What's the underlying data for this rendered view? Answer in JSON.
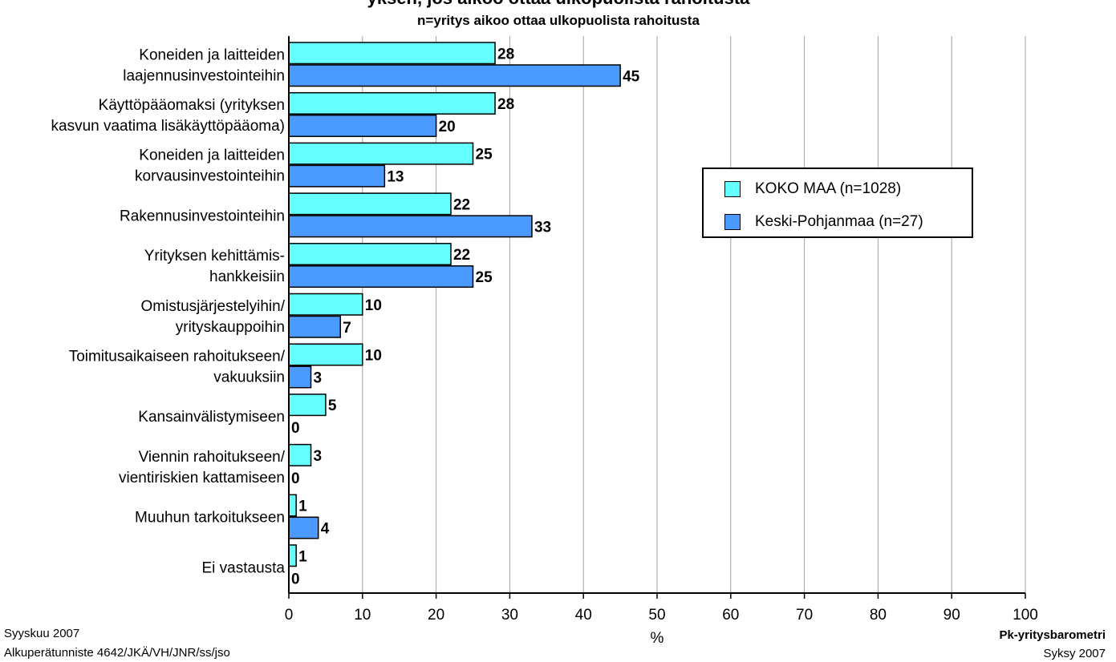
{
  "chart_data": {
    "type": "bar",
    "orientation": "horizontal",
    "title": "yksen, jos aikoo ottaa ulkopuolista rahoitusta",
    "subtitle": "n=yritys aikoo ottaa ulkopuolista rahoitusta",
    "xlabel": "%",
    "ylabel": "",
    "xlim": [
      0,
      100
    ],
    "xticks": [
      "0",
      "10",
      "20",
      "30",
      "40",
      "50",
      "60",
      "70",
      "80",
      "90",
      "100"
    ],
    "grid": "vertical",
    "legend_position": "right",
    "categories": [
      [
        "Koneiden ja laitteiden",
        "laajennusinvestointeihin"
      ],
      [
        "Käyttöpääomaksi (yrityksen",
        "kasvun vaatima lisäkäyttöpääoma)"
      ],
      [
        "Koneiden ja laitteiden",
        "korvausinvestointeihin"
      ],
      [
        "Rakennusinvestointeihin"
      ],
      [
        "Yrityksen kehittämis-",
        "hankkeisiin"
      ],
      [
        "Omistusjärjestelyihin/",
        "yrityskauppoihin"
      ],
      [
        "Toimitusaikaiseen rahoitukseen/",
        "vakuuksiin"
      ],
      [
        "Kansainvälistymiseen"
      ],
      [
        "Viennin rahoitukseen/",
        "vientiriskien kattamiseen"
      ],
      [
        "Muuhun tarkoitukseen"
      ],
      [
        "Ei vastausta"
      ]
    ],
    "series": [
      {
        "name": "KOKO MAA (n=1028)",
        "color": "#66ffff",
        "values": [
          28,
          28,
          25,
          22,
          22,
          10,
          10,
          5,
          3,
          1,
          1
        ]
      },
      {
        "name": "Keski-Pohjanmaa (n=27)",
        "color": "#4a9aff",
        "values": [
          45,
          20,
          13,
          33,
          25,
          7,
          3,
          0,
          0,
          4,
          0
        ]
      }
    ]
  },
  "footer": {
    "date": "Syyskuu 2007",
    "reference": "Alkuperätunniste 4642/JKÄ/VH/JNR/ss/jso",
    "brand": "Pk-yritysbarometri",
    "season": "Syksy 2007"
  }
}
